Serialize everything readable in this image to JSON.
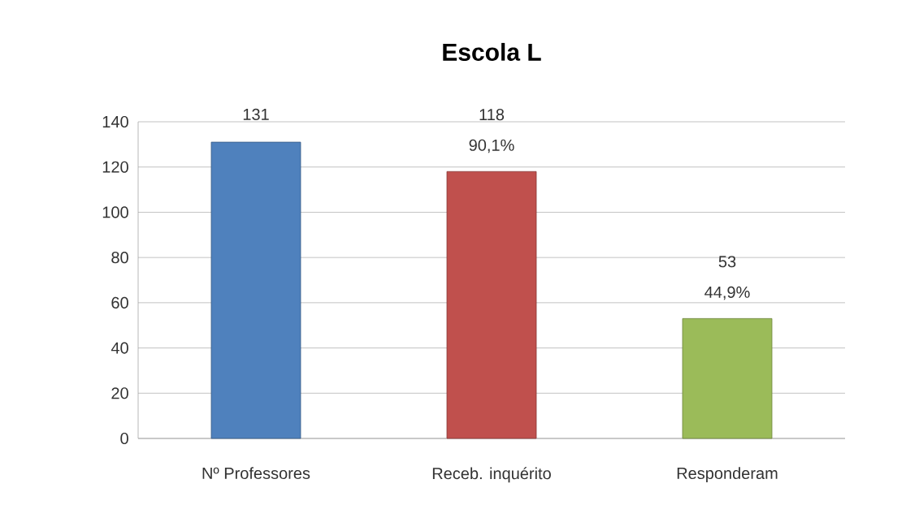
{
  "chart_data": {
    "type": "bar",
    "title": "Escola L",
    "categories": [
      "Nº Professores",
      "Receb. inquérito",
      "Responderam"
    ],
    "values": [
      131,
      118,
      53
    ],
    "colors": [
      "#4f81bd",
      "#c0504d",
      "#9bbb59"
    ],
    "value_labels": [
      "131",
      "118",
      "53"
    ],
    "annotations": [
      {
        "text": "90,1%",
        "x": "Receb. inquérito",
        "y": 118
      },
      {
        "text": "44,9%",
        "x": "Responderam",
        "y": 53
      }
    ],
    "ylim": [
      0,
      140
    ],
    "yticks": [
      0,
      20,
      40,
      60,
      80,
      100,
      120,
      140
    ],
    "grid": "y"
  }
}
